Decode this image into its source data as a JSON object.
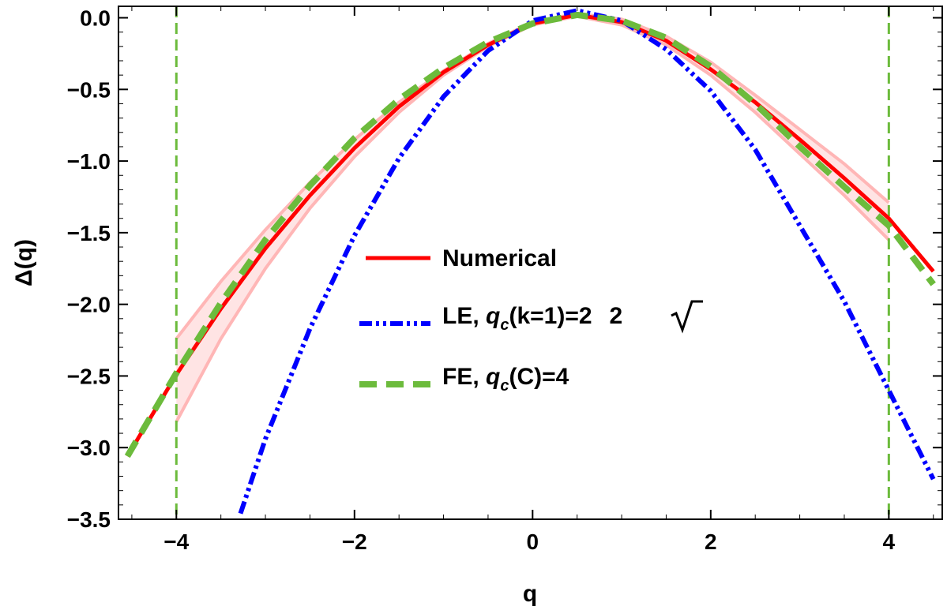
{
  "chart_data": {
    "type": "line",
    "xlabel": "q",
    "ylabel": "Δ(q)",
    "xlim": [
      -4.65,
      4.6
    ],
    "ylim": [
      -3.5,
      0.08
    ],
    "xticks": [
      -4,
      -2,
      0,
      2,
      4
    ],
    "xtick_labels": [
      "−4",
      "−2",
      "0",
      "2",
      "4"
    ],
    "yticks": [
      0.0,
      -0.5,
      -1.0,
      -1.5,
      -2.0,
      -2.5,
      -3.0,
      -3.5
    ],
    "ytick_labels": [
      "0.0",
      "−0.5",
      "−1.0",
      "−1.5",
      "−2.0",
      "−2.5",
      "−3.0",
      "−3.5"
    ],
    "grid": false,
    "legend_position": "center",
    "series": [
      {
        "name": "Numerical",
        "color": "#ff0000",
        "style": "solid",
        "x": [
          -4.55,
          -4.0,
          -3.5,
          -3.0,
          -2.5,
          -2.0,
          -1.5,
          -1.0,
          -0.5,
          0.0,
          0.5,
          1.0,
          1.5,
          2.0,
          2.5,
          3.0,
          3.5,
          4.0,
          4.5
        ],
        "y": [
          -3.06,
          -2.49,
          -2.03,
          -1.61,
          -1.24,
          -0.91,
          -0.62,
          -0.38,
          -0.19,
          -0.04,
          0.02,
          -0.03,
          -0.16,
          -0.36,
          -0.59,
          -0.85,
          -1.12,
          -1.4,
          -1.77
        ]
      },
      {
        "name": "LE, q_c(k=1)=2√2",
        "label_parts": {
          "prefix": "LE, ",
          "q": "q",
          "sub": "c",
          "mid": "(k=1)=2",
          "root": "2"
        },
        "color": "#0000ff",
        "style": "dash-dot-dot",
        "x": [
          -3.28,
          -3.0,
          -2.5,
          -2.0,
          -1.5,
          -1.0,
          -0.5,
          0.0,
          0.5,
          1.0,
          1.5,
          2.0,
          2.5,
          3.0,
          3.5,
          4.0,
          4.5
        ],
        "y": [
          -3.46,
          -2.94,
          -2.17,
          -1.52,
          -0.98,
          -0.55,
          -0.23,
          -0.02,
          0.05,
          -0.02,
          -0.22,
          -0.51,
          -0.92,
          -1.45,
          -1.98,
          -2.6,
          -3.22
        ]
      },
      {
        "name": "FE, q_c(C)=4",
        "label_parts": {
          "prefix": "FE, ",
          "q": "q",
          "sub": "c",
          "mid": "(C)=4"
        },
        "color": "#6cbb3c",
        "style": "dashed",
        "x": [
          -4.55,
          -4.0,
          -3.5,
          -3.0,
          -2.5,
          -2.0,
          -1.5,
          -1.0,
          -0.5,
          0.0,
          0.5,
          1.0,
          1.5,
          2.0,
          2.5,
          3.0,
          3.5,
          4.0,
          4.5
        ],
        "y": [
          -3.06,
          -2.48,
          -1.99,
          -1.55,
          -1.17,
          -0.84,
          -0.57,
          -0.35,
          -0.17,
          -0.04,
          0.02,
          -0.02,
          -0.14,
          -0.34,
          -0.6,
          -0.9,
          -1.18,
          -1.45,
          -1.86
        ]
      }
    ],
    "band": {
      "color": "#ffb6b6",
      "fill": "#ffe4e4",
      "x": [
        -4.0,
        -3.5,
        -3.0,
        -2.5,
        -2.0,
        -1.5,
        -1.0,
        -0.5,
        0.0,
        0.5,
        1.0,
        1.5,
        2.0,
        2.5,
        3.0,
        3.5,
        4.0
      ],
      "upper": [
        -2.24,
        -1.84,
        -1.48,
        -1.15,
        -0.85,
        -0.59,
        -0.37,
        -0.18,
        -0.03,
        0.03,
        -0.01,
        -0.13,
        -0.31,
        -0.54,
        -0.78,
        -1.02,
        -1.29
      ],
      "lower": [
        -2.82,
        -2.24,
        -1.75,
        -1.33,
        -0.97,
        -0.66,
        -0.4,
        -0.2,
        -0.05,
        0.01,
        -0.05,
        -0.19,
        -0.4,
        -0.66,
        -0.95,
        -1.24,
        -1.55
      ]
    },
    "vertical_lines": [
      {
        "x": -4,
        "color": "#6cbb3c",
        "style": "dashed"
      },
      {
        "x": 4,
        "color": "#6cbb3c",
        "style": "dashed"
      }
    ]
  }
}
